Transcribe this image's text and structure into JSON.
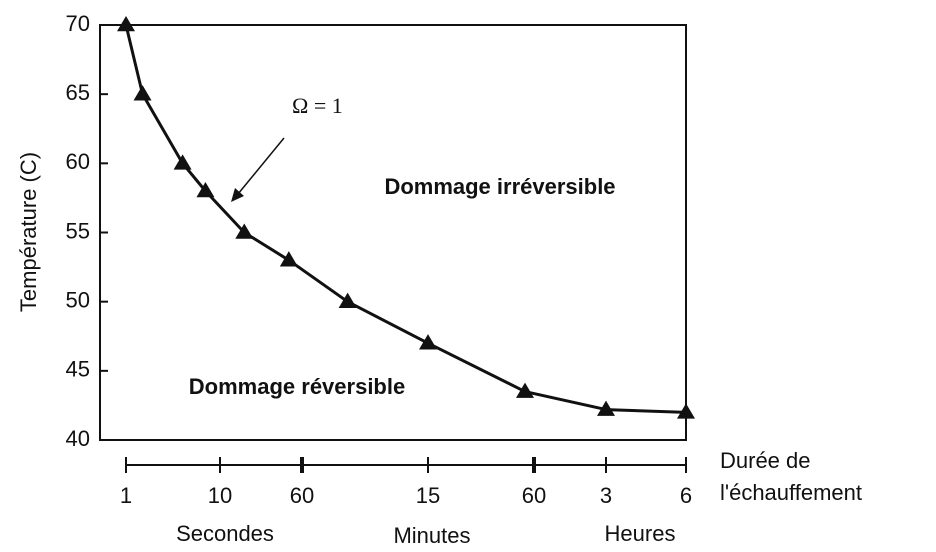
{
  "chart_data": {
    "type": "line",
    "ylabel": "Température (C)",
    "xlabel": [
      "Durée de",
      "l'échauffement"
    ],
    "x_groups": [
      "Secondes",
      "Minutes",
      "Heures"
    ],
    "annotations": [
      "Ω = 1",
      "Dommage irréversible",
      "Dommage réversible"
    ],
    "x": [
      1,
      1.5,
      4,
      7,
      17,
      45,
      160,
      900,
      3200,
      10800,
      21600
    ],
    "values": [
      70,
      65,
      60,
      58,
      55,
      53,
      50,
      47,
      43.5,
      42.2,
      42
    ],
    "color": "#111111",
    "xlim": [
      1,
      21600
    ],
    "xticks": [
      1,
      10,
      {
        "value": 60,
        "label": "60"
      },
      {
        "value": 900,
        "label": "15"
      },
      {
        "value": 3600,
        "label": "60"
      },
      {
        "value": 10800,
        "label": "3"
      },
      {
        "value": 21600,
        "label": "6"
      }
    ],
    "ylim": [
      40,
      70
    ],
    "yticks": [
      40,
      45,
      50,
      55,
      60,
      65,
      70
    ]
  }
}
